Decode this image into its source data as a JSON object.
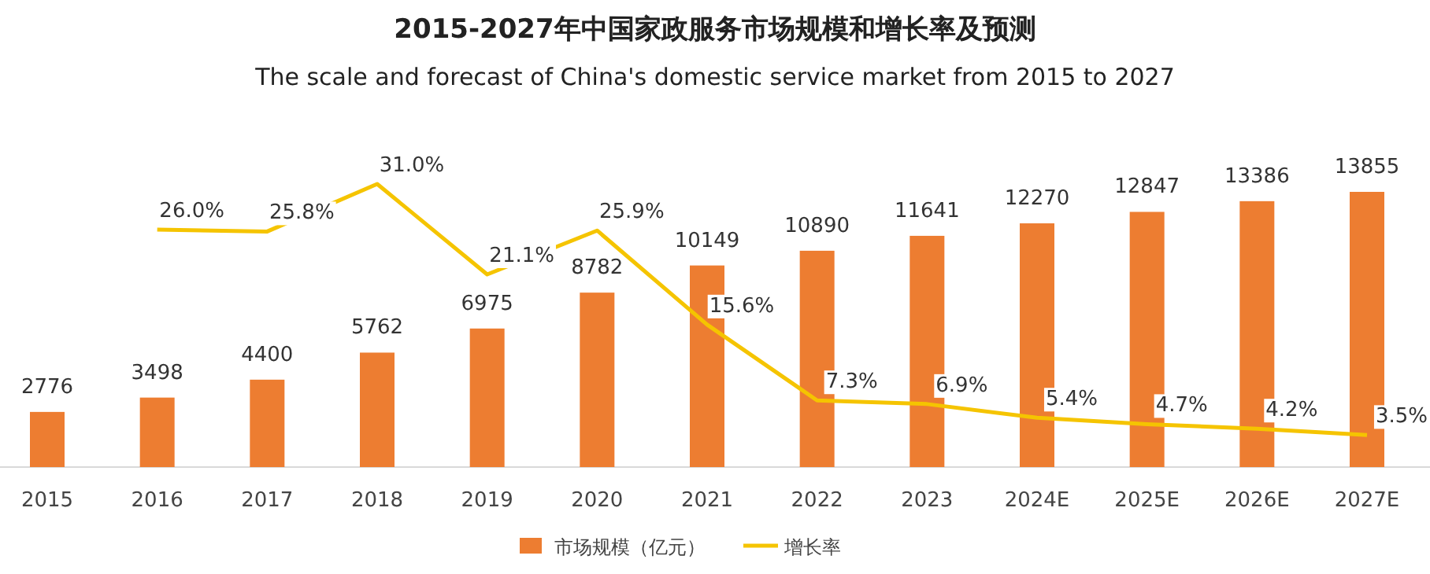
{
  "chart_data": {
    "type": "bar",
    "title": "2015-2027年中国家政服务市场规模和增长率及预测",
    "subtitle": "The scale and forecast of China's domestic service market from 2015 to 2027",
    "categories": [
      "2015",
      "2016",
      "2017",
      "2018",
      "2019",
      "2020",
      "2021",
      "2022",
      "2023",
      "2024E",
      "2025E",
      "2026E",
      "2027E"
    ],
    "series": [
      {
        "name": "市场规模（亿元）",
        "color": "#ed7d31",
        "values": [
          2776,
          3498,
          4400,
          5762,
          6975,
          8782,
          10149,
          10890,
          11641,
          12270,
          12847,
          13386,
          13855
        ]
      },
      {
        "name": "增长率",
        "type": "line",
        "axis": "y2",
        "color": "#f5c400",
        "value_labels": [
          null,
          "26.0%",
          "25.8%",
          "31.0%",
          "21.1%",
          "25.9%",
          "15.6%",
          "7.3%",
          "6.9%",
          "5.4%",
          "4.7%",
          "4.2%",
          "3.5%"
        ],
        "values": [
          null,
          26.0,
          25.8,
          31.0,
          21.1,
          25.9,
          15.6,
          7.3,
          6.9,
          5.4,
          4.7,
          4.2,
          3.5
        ]
      }
    ],
    "data_labels": true,
    "legend": "bottom"
  }
}
